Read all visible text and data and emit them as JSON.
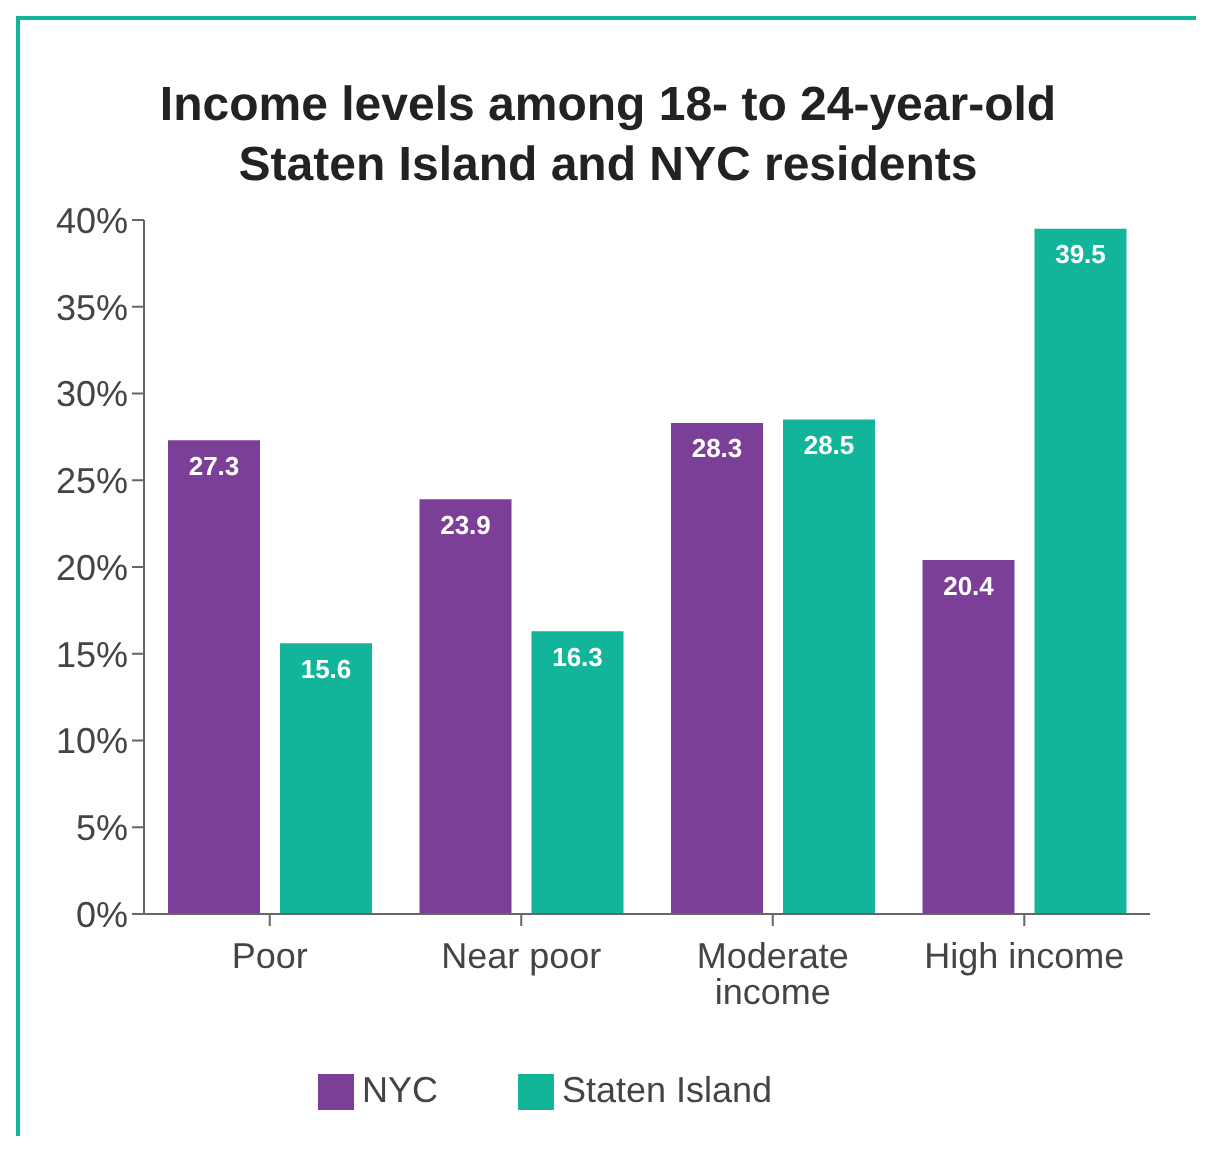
{
  "chart_data": {
    "type": "bar",
    "title": "Income levels among 18- to 24-year-old Staten Island and NYC residents",
    "categories": [
      "Poor",
      "Near poor",
      "Moderate income",
      "High income"
    ],
    "series": [
      {
        "name": "NYC",
        "color": "#7b3f98",
        "values": [
          27.3,
          23.9,
          28.3,
          20.4
        ]
      },
      {
        "name": "Staten Island",
        "color": "#12b59a",
        "values": [
          15.6,
          16.3,
          28.5,
          39.5
        ]
      }
    ],
    "ylim": [
      0,
      40
    ],
    "yticks": [
      {
        "value": 0,
        "label": "0%"
      },
      {
        "value": 5,
        "label": "5%"
      },
      {
        "value": 10,
        "label": "10%"
      },
      {
        "value": 15,
        "label": "15%"
      },
      {
        "value": 20,
        "label": "20%"
      },
      {
        "value": 25,
        "label": "25%"
      },
      {
        "value": 30,
        "label": "30%"
      },
      {
        "value": 35,
        "label": "35%"
      },
      {
        "value": 40,
        "label": "40%"
      }
    ],
    "data_labels": true,
    "grid": false,
    "legend": "bottom"
  }
}
